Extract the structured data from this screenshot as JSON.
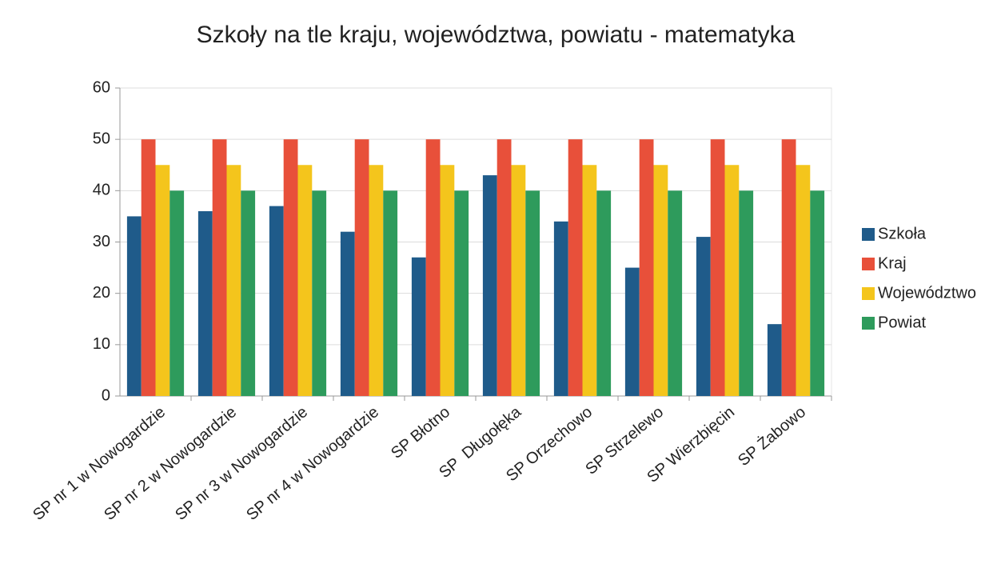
{
  "chart_data": {
    "type": "bar",
    "title": "Szkoły na tle kraju, województwa, powiatu - matematyka",
    "categories": [
      "SP nr 1 w Nowogardzie",
      "SP nr 2 w Nowogardzie",
      "SP nr 3 w Nowogardzie",
      "SP nr 4 w Nowogardzie",
      "SP Błotno",
      "SP  Długołęka",
      "SP Orzechowo",
      "SP Strzelewo",
      "SP Wierzbięcin",
      "SP Żabowo"
    ],
    "series": [
      {
        "name": "Szkoła",
        "color": "#1f5b8a",
        "values": [
          35,
          36,
          37,
          32,
          27,
          43,
          34,
          25,
          31,
          14
        ]
      },
      {
        "name": "Kraj",
        "color": "#e8503a",
        "values": [
          50,
          50,
          50,
          50,
          50,
          50,
          50,
          50,
          50,
          50
        ]
      },
      {
        "name": "Województwo",
        "color": "#f4c51c",
        "values": [
          45,
          45,
          45,
          45,
          45,
          45,
          45,
          45,
          45,
          45
        ]
      },
      {
        "name": "Powiat",
        "color": "#2e9b5c",
        "values": [
          40,
          40,
          40,
          40,
          40,
          40,
          40,
          40,
          40,
          40
        ]
      }
    ],
    "ylim": [
      0,
      60
    ],
    "yticks": [
      0,
      10,
      20,
      30,
      40,
      50,
      60
    ],
    "grid": true,
    "legend": "right"
  }
}
